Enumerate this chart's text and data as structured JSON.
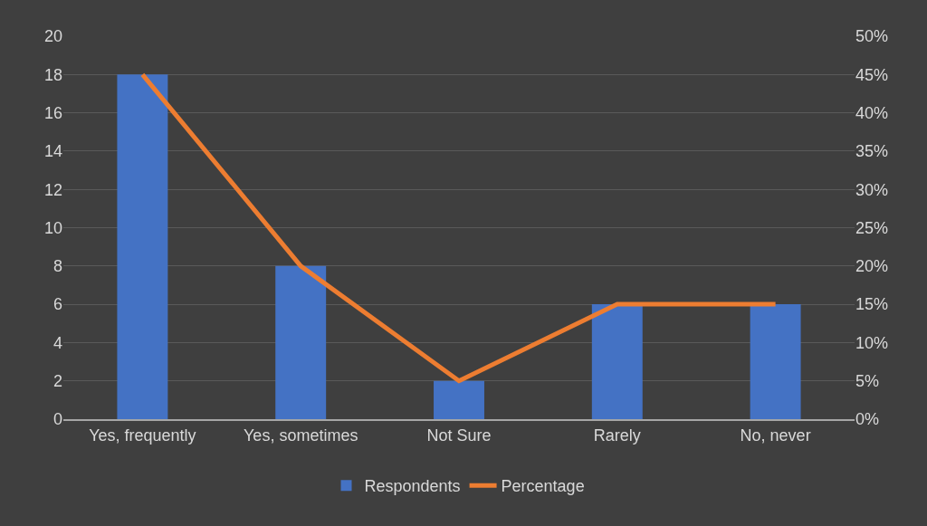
{
  "chart_data": {
    "type": "bar",
    "categories": [
      "Yes, frequently",
      "Yes, sometimes",
      "Not Sure",
      "Rarely",
      "No, never"
    ],
    "series": [
      {
        "name": "Respondents",
        "color": "#4472c4",
        "values": [
          18,
          8,
          2,
          6,
          6
        ]
      },
      {
        "name": "Percentage",
        "type": "line",
        "axis": "y2",
        "color": "#ed7d31",
        "values": [
          45,
          20,
          5,
          15,
          15
        ]
      }
    ],
    "ylim": [
      0,
      20
    ],
    "yticks": [
      0,
      2,
      4,
      6,
      8,
      10,
      12,
      14,
      16,
      18,
      20
    ],
    "y2lim": [
      0,
      50
    ],
    "y2ticks": [
      {
        "value": 0,
        "label": "0%"
      },
      {
        "value": 5,
        "label": "5%"
      },
      {
        "value": 10,
        "label": "10%"
      },
      {
        "value": 15,
        "label": "15%"
      },
      {
        "value": 20,
        "label": "20%"
      },
      {
        "value": 25,
        "label": "25%"
      },
      {
        "value": 30,
        "label": "30%"
      },
      {
        "value": 35,
        "label": "35%"
      },
      {
        "value": 40,
        "label": "40%"
      },
      {
        "value": 45,
        "label": "45%"
      },
      {
        "value": 50,
        "label": "50%"
      }
    ],
    "grid": "y",
    "legend": "bottom",
    "marker": "none",
    "line_style": "solid"
  }
}
